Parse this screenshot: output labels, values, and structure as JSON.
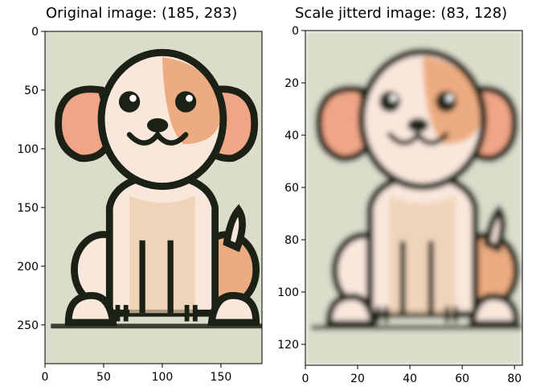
{
  "panels": [
    {
      "title": "Original image: (185, 283)",
      "x_ticks": [
        "0",
        "50",
        "100",
        "150"
      ],
      "y_ticks": [
        "0",
        "50",
        "100",
        "150",
        "200",
        "250"
      ],
      "blur": 0
    },
    {
      "title": "Scale jitterd image: (83, 128)",
      "x_ticks": [
        "0",
        "20",
        "40",
        "60",
        "80"
      ],
      "y_ticks": [
        "0",
        "20",
        "40",
        "60",
        "80",
        "100",
        "120"
      ],
      "blur": 2.2
    }
  ],
  "colors": {
    "background": "#dcdcca",
    "ear": "#f0a586",
    "spot": "#ecab80",
    "body": "#f9e7db",
    "belly": "#ecccac",
    "outline": "#1c2116",
    "ground": "#3a3f33"
  },
  "icons": {
    "left": "dog-cartoon-illustration",
    "right": "dog-cartoon-illustration-blurred"
  }
}
